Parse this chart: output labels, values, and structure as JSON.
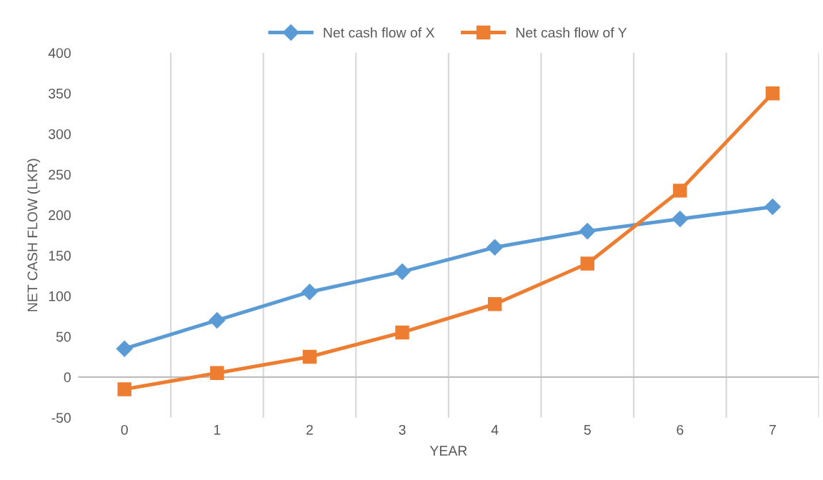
{
  "chart_data": {
    "type": "line",
    "xlabel": "YEAR",
    "ylabel": "NET CASH FLOW (LKR)",
    "categories": [
      "0",
      "1",
      "2",
      "3",
      "4",
      "5",
      "6",
      "7"
    ],
    "series": [
      {
        "name": "Net cash flow of X",
        "color": "#5b9bd5",
        "marker": "diamond",
        "values": [
          35,
          70,
          105,
          130,
          160,
          180,
          195,
          210
        ]
      },
      {
        "name": "Net cash flow of Y",
        "color": "#ed7d31",
        "marker": "square",
        "values": [
          -15,
          5,
          25,
          55,
          90,
          140,
          230,
          350
        ]
      }
    ],
    "ylim": [
      -50,
      400
    ],
    "yticks": [
      -50,
      0,
      50,
      100,
      150,
      200,
      250,
      300,
      350,
      400
    ],
    "grid": "x",
    "legend": "top",
    "line_style": "solid"
  }
}
